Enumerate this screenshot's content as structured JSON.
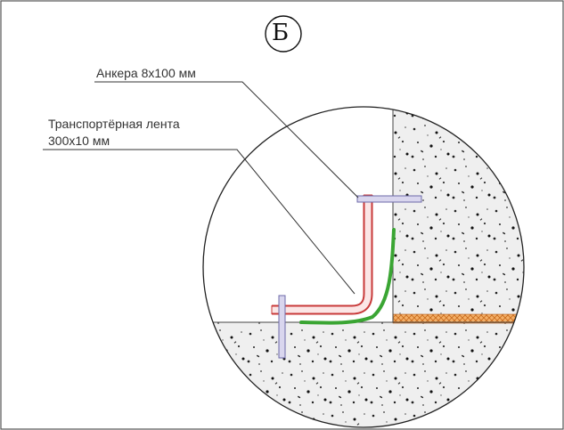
{
  "view_marker": "Б",
  "labels": {
    "anchors": "Анкера 8х100 мм",
    "belt_line1": "Транспортёрная лента",
    "belt_line2": "300х10 мм"
  },
  "colors": {
    "background": "#ffffff",
    "outline": "#222222",
    "leader": "#333333",
    "belt_fill": "#fbe6e6",
    "belt_edge": "#c83a3a",
    "anchor_fill": "#d9d6ee",
    "anchor_edge": "#6d6aa8",
    "sealant": "#3aa533",
    "insulation": "#f0a24a"
  }
}
